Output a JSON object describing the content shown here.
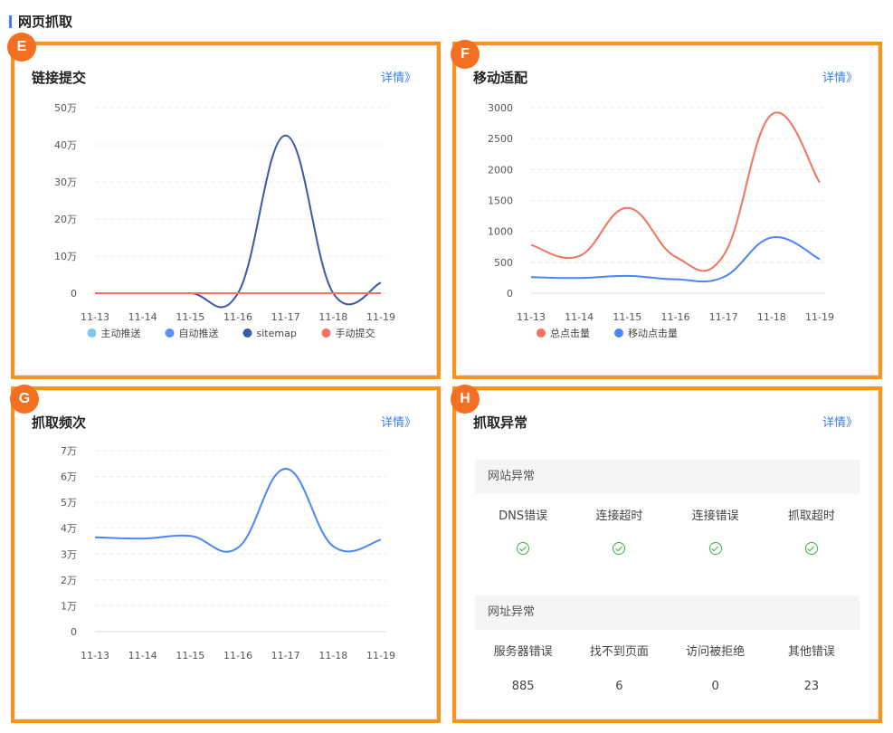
{
  "page": {
    "section_title": "网页抓取"
  },
  "cards": {
    "e": {
      "badge": "E",
      "title": "链接提交",
      "link": "详情》"
    },
    "f": {
      "badge": "F",
      "title": "移动适配",
      "link": "详情》"
    },
    "g": {
      "badge": "G",
      "title": "抓取频次",
      "link": "详情》"
    },
    "h": {
      "badge": "H",
      "title": "抓取异常",
      "link": "详情》"
    }
  },
  "chart_data": [
    {
      "id": "E",
      "type": "line",
      "categories": [
        "11-13",
        "11-14",
        "11-15",
        "11-16",
        "11-17",
        "11-18",
        "11-19"
      ],
      "ylim": [
        0,
        500000
      ],
      "yticks": [
        {
          "value": 0,
          "label": "0"
        },
        {
          "value": 100000,
          "label": "10万"
        },
        {
          "value": 200000,
          "label": "20万"
        },
        {
          "value": 300000,
          "label": "30万"
        },
        {
          "value": 400000,
          "label": "40万"
        },
        {
          "value": 500000,
          "label": "50万"
        }
      ],
      "grid": true,
      "legend": "bottom",
      "series": [
        {
          "name": "主动推送",
          "color": "#7ec8f2",
          "values": [
            0,
            0,
            0,
            0,
            0,
            0,
            0
          ]
        },
        {
          "name": "自动推送",
          "color": "#5b8ff9",
          "values": [
            0,
            0,
            0,
            0,
            0,
            0,
            0
          ]
        },
        {
          "name": "sitemap",
          "color": "#3a5aa8",
          "values": [
            0,
            0,
            0,
            0,
            425000,
            0,
            28000
          ]
        },
        {
          "name": "手动提交",
          "color": "#f27360",
          "values": [
            0,
            0,
            0,
            0,
            0,
            0,
            0
          ]
        }
      ]
    },
    {
      "id": "F",
      "type": "line",
      "categories": [
        "11-13",
        "11-14",
        "11-15",
        "11-16",
        "11-17",
        "11-18",
        "11-19"
      ],
      "ylim": [
        0,
        3000
      ],
      "yticks": [
        {
          "value": 0,
          "label": "0"
        },
        {
          "value": 500,
          "label": "500"
        },
        {
          "value": 1000,
          "label": "1000"
        },
        {
          "value": 1500,
          "label": "1500"
        },
        {
          "value": 2000,
          "label": "2000"
        },
        {
          "value": 2500,
          "label": "2500"
        },
        {
          "value": 3000,
          "label": "3000"
        }
      ],
      "grid": true,
      "legend": "bottom",
      "series": [
        {
          "name": "总点击量",
          "color": "#f27360",
          "values": [
            780,
            600,
            1380,
            590,
            610,
            2890,
            1790
          ]
        },
        {
          "name": "移动点击量",
          "color": "#4a86f7",
          "values": [
            260,
            245,
            280,
            225,
            260,
            900,
            550
          ]
        }
      ]
    },
    {
      "id": "G",
      "type": "line",
      "categories": [
        "11-13",
        "11-14",
        "11-15",
        "11-16",
        "11-17",
        "11-18",
        "11-19"
      ],
      "ylim": [
        0,
        70000
      ],
      "yticks": [
        {
          "value": 0,
          "label": "0"
        },
        {
          "value": 10000,
          "label": "1万"
        },
        {
          "value": 20000,
          "label": "2万"
        },
        {
          "value": 30000,
          "label": "3万"
        },
        {
          "value": 40000,
          "label": "4万"
        },
        {
          "value": 50000,
          "label": "5万"
        },
        {
          "value": 60000,
          "label": "6万"
        },
        {
          "value": 70000,
          "label": "7万"
        }
      ],
      "grid": true,
      "legend": "none",
      "series": [
        {
          "color": "#4a86f7",
          "values": [
            36500,
            36000,
            37000,
            32500,
            63000,
            33000,
            35500
          ]
        }
      ]
    }
  ],
  "crawl_errors": {
    "site_group": {
      "title": "网站异常",
      "items": [
        {
          "label": "DNS错误",
          "status": "ok"
        },
        {
          "label": "连接超时",
          "status": "ok"
        },
        {
          "label": "连接错误",
          "status": "ok"
        },
        {
          "label": "抓取超时",
          "status": "ok"
        }
      ]
    },
    "url_group": {
      "title": "网址异常",
      "items": [
        {
          "label": "服务器错误",
          "value": "885"
        },
        {
          "label": "找不到页面",
          "value": "6"
        },
        {
          "label": "访问被拒绝",
          "value": "0"
        },
        {
          "label": "其他错误",
          "value": "23"
        }
      ]
    }
  }
}
